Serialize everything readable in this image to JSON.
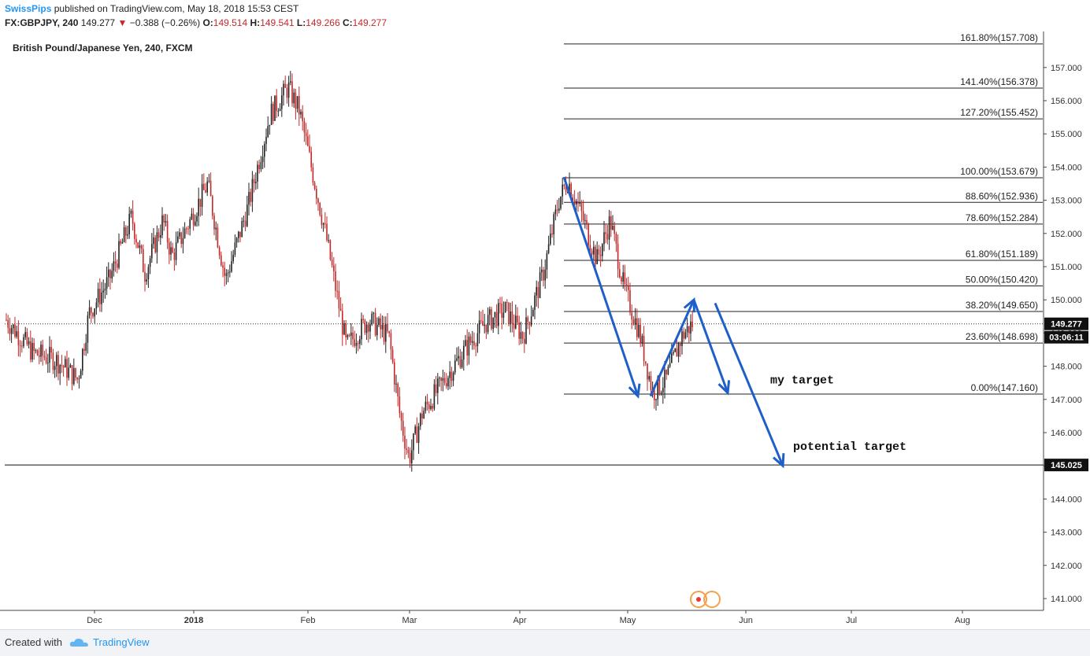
{
  "header": {
    "author": "SwissPips",
    "published": "published on TradingView.com, May 18, 2018 15:53 CEST",
    "symbol": "FX:GBPJPY, 240",
    "last": "149.277",
    "change": "−0.388 (−0.26%)",
    "o_label": "O:",
    "o_value": "149.514",
    "h_label": "H:",
    "h_value": "149.541",
    "l_label": "L:",
    "l_value": "149.266",
    "c_label": "C:",
    "c_value": "149.277"
  },
  "footer": {
    "created_with": "Created with",
    "brand": "TradingView",
    "logo_icon": "tradingview-cloud-icon"
  },
  "colors": {
    "up": "#222222",
    "down": "#c62828",
    "arrow": "#1f5fc8",
    "author": "#2196f3"
  },
  "chart_data": {
    "type": "candlestick",
    "title": "British Pound/Japanese Yen, 240, FXCM",
    "ylim": [
      140.7,
      158.0
    ],
    "y_ticks": [
      "141.000",
      "142.000",
      "143.000",
      "144.000",
      "145.000",
      "146.000",
      "147.000",
      "148.000",
      "149.000",
      "150.000",
      "151.000",
      "152.000",
      "153.000",
      "154.000",
      "155.000",
      "156.000",
      "157.000"
    ],
    "x_labels": [
      "Dec",
      "2018",
      "Feb",
      "Mar",
      "Apr",
      "May",
      "Jun",
      "Jul",
      "Aug"
    ],
    "grid": false,
    "price_path": [
      {
        "x": 0.0,
        "y": 149.4
      },
      {
        "x": 1.2,
        "y": 148.4
      },
      {
        "x": 2.2,
        "y": 148.2
      },
      {
        "x": 3.2,
        "y": 147.6
      },
      {
        "x": 3.7,
        "y": 149.6
      },
      {
        "x": 4.6,
        "y": 150.6
      },
      {
        "x": 5.6,
        "y": 152.5
      },
      {
        "x": 6.2,
        "y": 150.8
      },
      {
        "x": 7.0,
        "y": 152.4
      },
      {
        "x": 7.4,
        "y": 151.3
      },
      {
        "x": 8.3,
        "y": 152.5
      },
      {
        "x": 9.0,
        "y": 153.5
      },
      {
        "x": 9.8,
        "y": 150.6
      },
      {
        "x": 10.8,
        "y": 152.8
      },
      {
        "x": 11.8,
        "y": 155.6
      },
      {
        "x": 12.6,
        "y": 156.4
      },
      {
        "x": 13.1,
        "y": 155.7
      },
      {
        "x": 14.3,
        "y": 151.9
      },
      {
        "x": 15.2,
        "y": 148.6
      },
      {
        "x": 16.2,
        "y": 149.4
      },
      {
        "x": 17.1,
        "y": 148.9
      },
      {
        "x": 17.6,
        "y": 146.5
      },
      {
        "x": 18.0,
        "y": 145.2
      },
      {
        "x": 18.6,
        "y": 146.6
      },
      {
        "x": 19.6,
        "y": 147.6
      },
      {
        "x": 20.6,
        "y": 148.6
      },
      {
        "x": 21.4,
        "y": 149.3
      },
      {
        "x": 22.3,
        "y": 149.7
      },
      {
        "x": 23.1,
        "y": 148.9
      },
      {
        "x": 24.0,
        "y": 150.8
      },
      {
        "x": 24.7,
        "y": 153.0
      },
      {
        "x": 25.1,
        "y": 153.6
      },
      {
        "x": 25.7,
        "y": 152.6
      },
      {
        "x": 26.4,
        "y": 151.2
      },
      {
        "x": 27.0,
        "y": 152.4
      },
      {
        "x": 27.6,
        "y": 150.4
      },
      {
        "x": 28.3,
        "y": 149.0
      },
      {
        "x": 28.9,
        "y": 147.2
      },
      {
        "x": 29.5,
        "y": 147.6
      },
      {
        "x": 30.2,
        "y": 148.9
      },
      {
        "x": 30.7,
        "y": 149.3
      }
    ],
    "fibonacci": [
      {
        "label": "161.80%(157.708)",
        "value": 157.708
      },
      {
        "label": "141.40%(156.378)",
        "value": 156.378
      },
      {
        "label": "127.20%(155.452)",
        "value": 155.452
      },
      {
        "label": "100.00%(153.679)",
        "value": 153.679
      },
      {
        "label": "88.60%(152.936)",
        "value": 152.936
      },
      {
        "label": "78.60%(152.284)",
        "value": 152.284
      },
      {
        "label": "61.80%(151.189)",
        "value": 151.189
      },
      {
        "label": "50.00%(150.420)",
        "value": 150.42
      },
      {
        "label": "38.20%(149.650)",
        "value": 149.65
      },
      {
        "label": "23.60%(148.698)",
        "value": 148.698
      },
      {
        "label": "0.00%(147.160)",
        "value": 147.16
      }
    ],
    "horizontal_line": {
      "value": 145.025,
      "label": "145.025"
    },
    "last_price": {
      "value": 149.277,
      "label": "149.277",
      "countdown": "03:06:11"
    },
    "arrows": [
      {
        "from": [
          153.7,
          1
        ],
        "to": [
          147.1,
          1
        ]
      },
      {
        "from": [
          147.1,
          2
        ],
        "to": [
          150.0,
          2
        ]
      },
      {
        "from": [
          150.0,
          3
        ],
        "to": [
          147.2,
          3
        ]
      },
      {
        "from": [
          149.9,
          4
        ],
        "to": [
          145.0,
          4
        ]
      }
    ],
    "annotations": [
      {
        "text": "my target",
        "value": 147.6
      },
      {
        "text": "potential target",
        "value": 145.6
      }
    ]
  }
}
